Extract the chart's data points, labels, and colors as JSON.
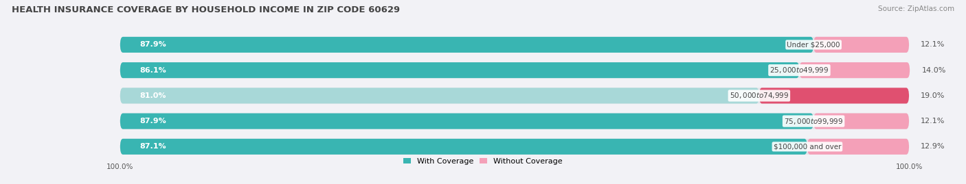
{
  "title": "HEALTH INSURANCE COVERAGE BY HOUSEHOLD INCOME IN ZIP CODE 60629",
  "source": "Source: ZipAtlas.com",
  "categories": [
    "Under $25,000",
    "$25,000 to $49,999",
    "$50,000 to $74,999",
    "$75,000 to $99,999",
    "$100,000 and over"
  ],
  "with_coverage": [
    87.9,
    86.1,
    81.0,
    87.9,
    87.1
  ],
  "without_coverage": [
    12.1,
    14.0,
    19.0,
    12.1,
    12.9
  ],
  "color_with": [
    "#39b5b2",
    "#39b5b2",
    "#a8d8d8",
    "#39b5b2",
    "#39b5b2"
  ],
  "color_without": [
    "#f4a0b8",
    "#f4a0b8",
    "#e05070",
    "#f4a0b8",
    "#f4a0b8"
  ],
  "bar_bg": "#e4e4ea",
  "fig_bg": "#f2f2f6",
  "bar_height": 0.62,
  "bar_gap": 1.1,
  "xlim_left": -6,
  "xlim_right": 114,
  "title_fontsize": 9.5,
  "label_fontsize": 8.0,
  "category_fontsize": 7.5,
  "legend_fontsize": 8.0,
  "source_fontsize": 7.5,
  "pct_label_color_left": "white",
  "pct_label_color_right": "#555555",
  "category_label_color": "#444444"
}
